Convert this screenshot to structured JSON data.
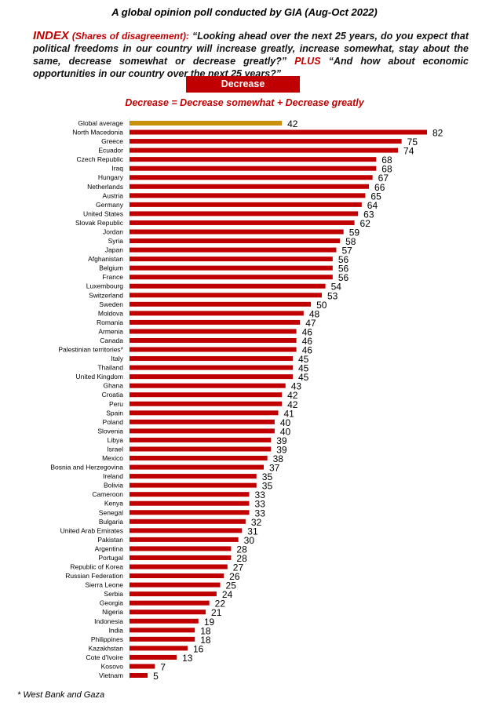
{
  "header": {
    "title": "A global opinion poll conducted by GIA (Aug-Oct 2022)",
    "index_label": "INDEX",
    "index_sub": "(Shares of disagreement):",
    "question_1": "“Looking ahead over the next 25 years, do you expect that political freedoms in our country will increase greatly, increase somewhat, stay about the same, decrease somewhat or decrease greatly?”",
    "plus": "PLUS",
    "question_2": "“And how about economic opportunities in our country over the next 25 years?”",
    "legend_label": "Decrease",
    "definition": "Decrease = Decrease somewhat + Decrease greatly"
  },
  "footnote": "* West Bank and Gaza",
  "colors": {
    "bar": "#c00000",
    "average": "#c8900a"
  },
  "chart_data": {
    "type": "bar",
    "orientation": "horizontal",
    "xlim": [
      0,
      82
    ],
    "grid": false,
    "categories": [
      "Global average",
      "North Macedonia",
      "Greece",
      "Ecuador",
      "Czech Republic",
      "Iraq",
      "Hungary",
      "Netherlands",
      "Austria",
      "Germany",
      "United States",
      "Slovak Republic",
      "Jordan",
      "Syria",
      "Japan",
      "Afghanistan",
      "Belgium",
      "France",
      "Luxembourg",
      "Switzerland",
      "Sweden",
      "Moldova",
      "Romania",
      "Armenia",
      "Canada",
      "Palestinian territories*",
      "Italy",
      "Thailand",
      "United Kingdom",
      "Ghana",
      "Croatia",
      "Peru",
      "Spain",
      "Poland",
      "Slovenia",
      "Libya",
      "Israel",
      "Mexico",
      "Bosnia and Herzegovina",
      "Ireland",
      "Bolivia",
      "Cameroon",
      "Kenya",
      "Senegal",
      "Bulgaria",
      "United Arab Emirates",
      "Pakistan",
      "Argentina",
      "Portugal",
      "Republic of Korea",
      "Russian Federation",
      "Sierra Leone",
      "Serbia",
      "Georgia",
      "Nigeria",
      "Indonesia",
      "India",
      "Philippines",
      "Kazakhstan",
      "Cote d'Ivoire",
      "Kosovo",
      "Vietnam"
    ],
    "values": [
      42,
      82,
      75,
      74,
      68,
      68,
      67,
      66,
      65,
      64,
      63,
      62,
      59,
      58,
      57,
      56,
      56,
      56,
      54,
      53,
      50,
      48,
      47,
      46,
      46,
      46,
      45,
      45,
      45,
      43,
      42,
      42,
      41,
      40,
      40,
      39,
      39,
      38,
      37,
      35,
      35,
      33,
      33,
      33,
      32,
      31,
      30,
      28,
      28,
      27,
      26,
      25,
      24,
      22,
      21,
      19,
      18,
      18,
      16,
      13,
      7,
      5
    ],
    "series": [
      {
        "name": "Decrease"
      }
    ]
  }
}
